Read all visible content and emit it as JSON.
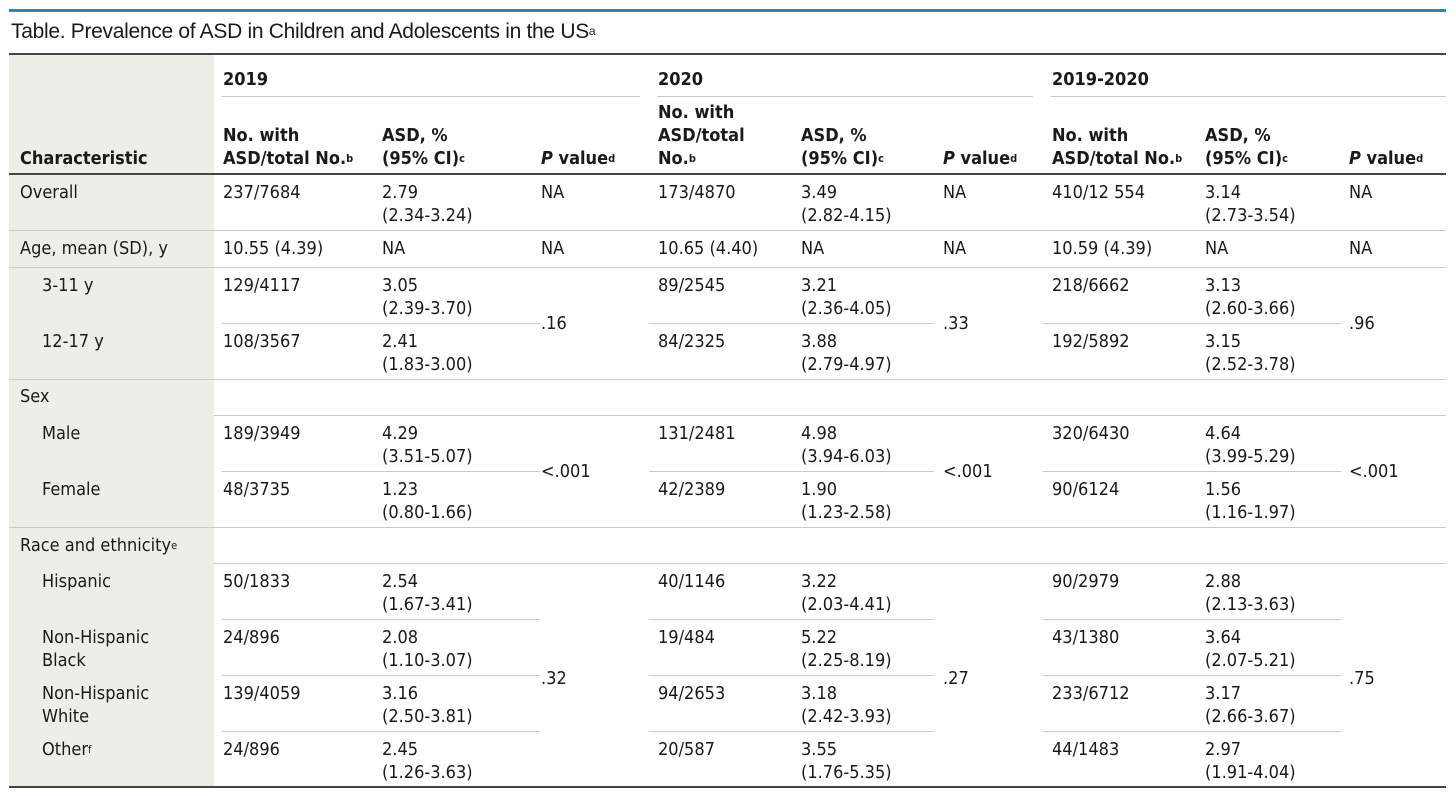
{
  "table": {
    "title": "Table. Prevalence of ASD in Children and Adolescents in the US",
    "title_sup": "a",
    "years": [
      "2019",
      "2020",
      "2019-2020"
    ],
    "headers": {
      "characteristic": "Characteristic",
      "no_with_asd_1": "No. with",
      "no_with_asd_2": "ASD/total No.",
      "no_with_asd_2020_1": "No. with",
      "no_with_asd_2020_2": "ASD/total",
      "no_with_asd_2020_3": "No.",
      "sup_b": "b",
      "asd_pct_1": "ASD, %",
      "asd_pct_2": "(95% CI)",
      "sup_c": "c",
      "p_value_italic": "P",
      "p_value_rest": " value",
      "sup_d": "d"
    },
    "rows": {
      "overall": {
        "label": "Overall",
        "y2019": [
          "237/7684",
          "2.79",
          "(2.34-3.24)",
          "NA"
        ],
        "y2020": [
          "173/4870",
          "3.49",
          "(2.82-4.15)",
          "NA"
        ],
        "yall": [
          "410/12 554",
          "3.14",
          "(2.73-3.54)",
          "NA"
        ]
      },
      "age": {
        "label": "Age, mean (SD), y",
        "y2019": [
          "10.55 (4.39)",
          "NA",
          "NA"
        ],
        "y2020": [
          "10.65 (4.40)",
          "NA",
          "NA"
        ],
        "yall": [
          "10.59 (4.39)",
          "NA",
          "NA"
        ]
      },
      "age_3_11": {
        "label": "3-11 y",
        "y2019": [
          "129/4117",
          "3.05",
          "(2.39-3.70)"
        ],
        "y2020": [
          "89/2545",
          "3.21",
          "(2.36-4.05)"
        ],
        "yall": [
          "218/6662",
          "3.13",
          "(2.60-3.66)"
        ]
      },
      "age_12_17": {
        "label": "12-17 y",
        "y2019": [
          "108/3567",
          "2.41",
          "(1.83-3.00)"
        ],
        "y2020": [
          "84/2325",
          "3.88",
          "(2.79-4.97)"
        ],
        "yall": [
          "192/5892",
          "3.15",
          "(2.52-3.78)"
        ]
      },
      "age_p": [
        ".16",
        ".33",
        ".96"
      ],
      "sex": {
        "label": "Sex"
      },
      "male": {
        "label": "Male",
        "y2019": [
          "189/3949",
          "4.29",
          "(3.51-5.07)"
        ],
        "y2020": [
          "131/2481",
          "4.98",
          "(3.94-6.03)"
        ],
        "yall": [
          "320/6430",
          "4.64",
          "(3.99-5.29)"
        ]
      },
      "female": {
        "label": "Female",
        "y2019": [
          "48/3735",
          "1.23",
          "(0.80-1.66)"
        ],
        "y2020": [
          "42/2389",
          "1.90",
          "(1.23-2.58)"
        ],
        "yall": [
          "90/6124",
          "1.56",
          "(1.16-1.97)"
        ]
      },
      "sex_p": [
        "<.001",
        "<.001",
        "<.001"
      ],
      "race": {
        "label": "Race and ethnicity",
        "sup": "e"
      },
      "hispanic": {
        "label": "Hispanic",
        "y2019": [
          "50/1833",
          "2.54",
          "(1.67-3.41)"
        ],
        "y2020": [
          "40/1146",
          "3.22",
          "(2.03-4.41)"
        ],
        "yall": [
          "90/2979",
          "2.88",
          "(2.13-3.63)"
        ]
      },
      "nh_black": {
        "label1": "Non-Hispanic",
        "label2": "Black",
        "y2019": [
          "24/896",
          "2.08",
          "(1.10-3.07)"
        ],
        "y2020": [
          "19/484",
          "5.22",
          "(2.25-8.19)"
        ],
        "yall": [
          "43/1380",
          "3.64",
          "(2.07-5.21)"
        ]
      },
      "nh_white": {
        "label1": "Non-Hispanic",
        "label2": "White",
        "y2019": [
          "139/4059",
          "3.16",
          "(2.50-3.81)"
        ],
        "y2020": [
          "94/2653",
          "3.18",
          "(2.42-3.93)"
        ],
        "yall": [
          "233/6712",
          "3.17",
          "(2.66-3.67)"
        ]
      },
      "other": {
        "label": "Other",
        "sup": "f",
        "y2019": [
          "24/896",
          "2.45",
          "(1.26-3.63)"
        ],
        "y2020": [
          "20/587",
          "3.55",
          "(1.76-5.35)"
        ],
        "yall": [
          "44/1483",
          "2.97",
          "(1.91-4.04)"
        ]
      },
      "race_p": [
        ".32",
        ".27",
        ".75"
      ]
    }
  }
}
